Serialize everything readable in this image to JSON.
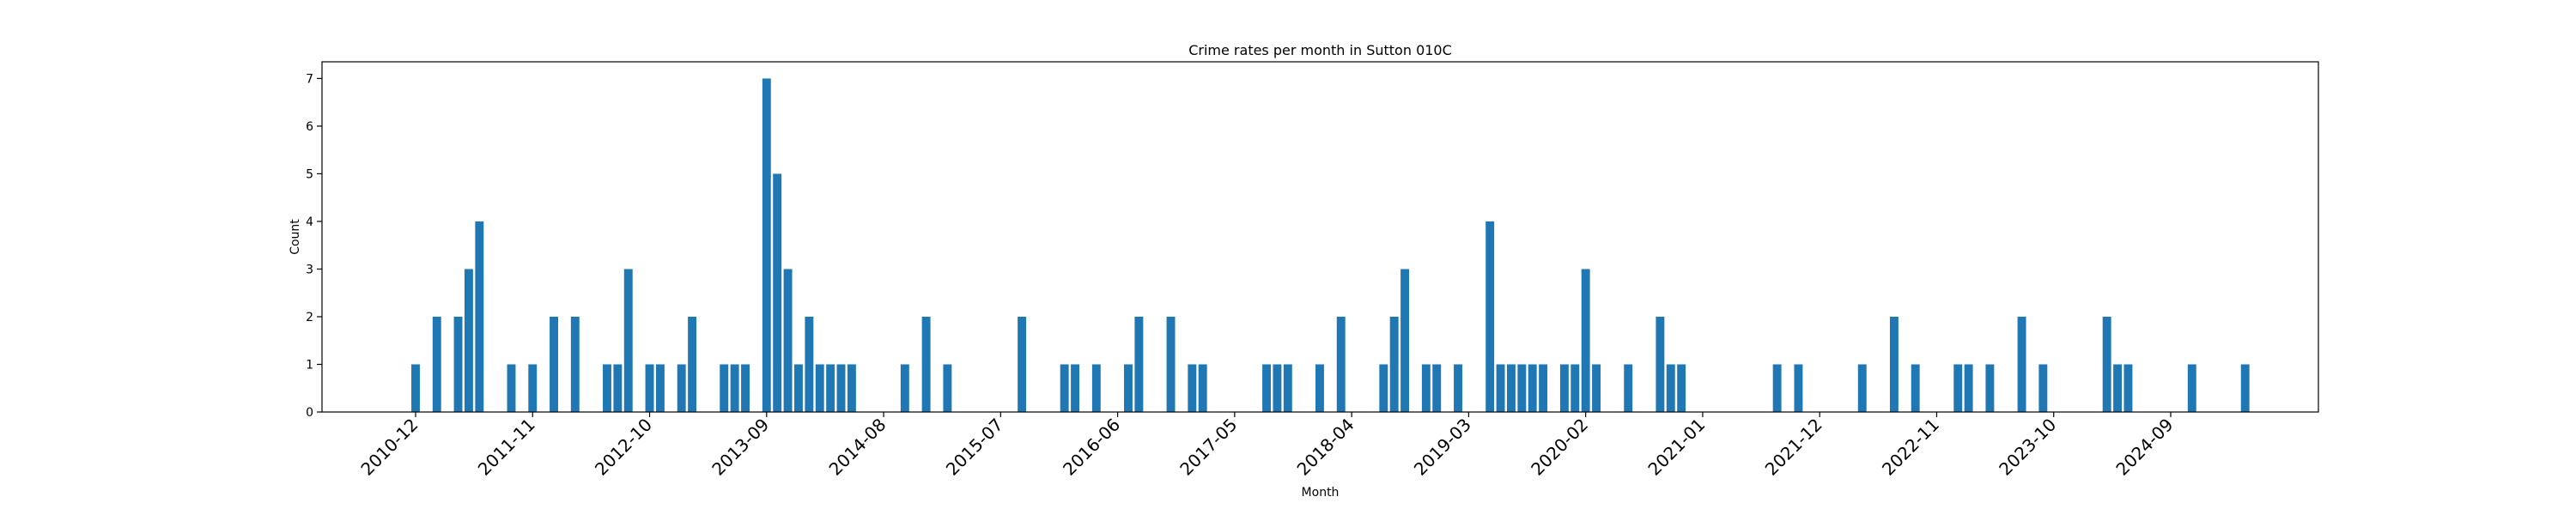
{
  "chart_data": {
    "type": "bar",
    "title": "Crime rates per month in Sutton 010C",
    "xlabel": "Month",
    "ylabel": "Count",
    "ylim": [
      0,
      7.35
    ],
    "yticks": [
      0,
      1,
      2,
      3,
      4,
      5,
      6,
      7
    ],
    "xtick_labels": [
      "2010-12",
      "2011-11",
      "2012-10",
      "2013-09",
      "2014-08",
      "2015-07",
      "2016-06",
      "2017-05",
      "2018-04",
      "2019-03",
      "2020-02",
      "2021-01",
      "2021-12",
      "2022-11",
      "2023-10",
      "2024-09"
    ],
    "bar_color": "#1f77b4",
    "grid": false,
    "series": [
      {
        "x": [
          "2010-12",
          "2011-02",
          "2011-04",
          "2011-05",
          "2011-06",
          "2011-09",
          "2011-11",
          "2012-01",
          "2012-03",
          "2012-06",
          "2012-07",
          "2012-08",
          "2012-10",
          "2012-11",
          "2013-01",
          "2013-02",
          "2013-05",
          "2013-06",
          "2013-07",
          "2013-09",
          "2013-10",
          "2013-11",
          "2013-12",
          "2014-01",
          "2014-02",
          "2014-03",
          "2014-04",
          "2014-05",
          "2014-10",
          "2014-12",
          "2015-02",
          "2015-09",
          "2016-01",
          "2016-02",
          "2016-04",
          "2016-07",
          "2016-08",
          "2016-11",
          "2017-01",
          "2017-02",
          "2017-08",
          "2017-09",
          "2017-10",
          "2018-01",
          "2018-03",
          "2018-07",
          "2018-08",
          "2018-09",
          "2018-11",
          "2018-12",
          "2019-02",
          "2019-05",
          "2019-06",
          "2019-07",
          "2019-08",
          "2019-09",
          "2019-10",
          "2019-12",
          "2020-01",
          "2020-02",
          "2020-03",
          "2020-06",
          "2020-09",
          "2020-10",
          "2020-11",
          "2021-08",
          "2021-10",
          "2022-04",
          "2022-07",
          "2022-09",
          "2023-01",
          "2023-02",
          "2023-04",
          "2023-07",
          "2023-09",
          "2024-03",
          "2024-04",
          "2024-05",
          "2024-11",
          "2025-04"
        ],
        "values": [
          1,
          2,
          2,
          3,
          4,
          1,
          1,
          2,
          2,
          1,
          1,
          3,
          1,
          1,
          1,
          2,
          1,
          1,
          1,
          7,
          5,
          3,
          1,
          2,
          1,
          1,
          1,
          1,
          1,
          2,
          1,
          2,
          1,
          1,
          1,
          1,
          2,
          2,
          1,
          1,
          1,
          1,
          1,
          1,
          2,
          1,
          2,
          3,
          1,
          1,
          1,
          4,
          1,
          1,
          1,
          1,
          1,
          1,
          1,
          3,
          1,
          1,
          2,
          1,
          1,
          1,
          1,
          1,
          2,
          1,
          1,
          1,
          1,
          2,
          1,
          2,
          1,
          1,
          1,
          1
        ]
      }
    ]
  }
}
